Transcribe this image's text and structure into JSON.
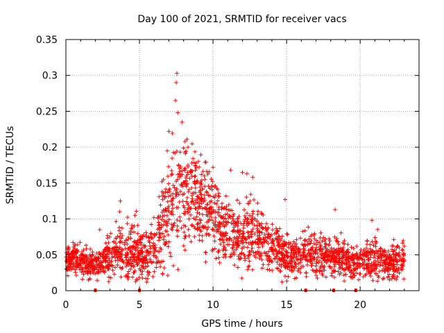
{
  "chart_data": {
    "type": "scatter",
    "title": "Day 100 of 2021, SRMTID for receiver vacs",
    "xlabel": "GPS time / hours",
    "ylabel": "SRMTID / TECUs",
    "xlim": [
      0,
      24
    ],
    "ylim": [
      0,
      0.35
    ],
    "x_ticks": [
      0,
      5,
      10,
      15,
      20
    ],
    "x_tick_labels": [
      "0",
      "5",
      "10",
      "15",
      "20"
    ],
    "y_ticks": [
      0,
      0.05,
      0.1,
      0.15,
      0.2,
      0.25,
      0.3,
      0.35
    ],
    "y_tick_labels": [
      "0",
      "0.05",
      "0.1",
      "0.15",
      "0.2",
      "0.25",
      "0.3",
      "0.35"
    ],
    "grid": true,
    "marker": "+",
    "series_color": "#ff0000",
    "marker_color": "#ff0000",
    "grid_color": "#a0a0a0",
    "profile": {
      "x": [
        0,
        0.5,
        1,
        1.5,
        2,
        2.5,
        3,
        3.5,
        4,
        4.5,
        5,
        5.5,
        6,
        6.5,
        7,
        7.5,
        8,
        8.5,
        9,
        9.5,
        10,
        10.5,
        11,
        11.5,
        12,
        12.5,
        13,
        13.5,
        14,
        14.5,
        15,
        15.5,
        16,
        16.5,
        17,
        17.5,
        18,
        18.5,
        19,
        19.5,
        20,
        20.5,
        21,
        21.5,
        22,
        22.5,
        23
      ],
      "y": [
        0.04,
        0.045,
        0.042,
        0.038,
        0.035,
        0.04,
        0.048,
        0.055,
        0.06,
        0.058,
        0.052,
        0.048,
        0.06,
        0.08,
        0.12,
        0.145,
        0.14,
        0.135,
        0.13,
        0.12,
        0.105,
        0.09,
        0.085,
        0.082,
        0.08,
        0.078,
        0.075,
        0.07,
        0.06,
        0.055,
        0.05,
        0.045,
        0.05,
        0.055,
        0.05,
        0.048,
        0.045,
        0.048,
        0.042,
        0.04,
        0.04,
        0.042,
        0.045,
        0.04,
        0.038,
        0.04,
        0.042
      ],
      "spread": [
        0.01,
        0.012,
        0.01,
        0.01,
        0.01,
        0.012,
        0.015,
        0.018,
        0.02,
        0.02,
        0.02,
        0.018,
        0.02,
        0.03,
        0.04,
        0.05,
        0.04,
        0.035,
        0.035,
        0.03,
        0.028,
        0.025,
        0.022,
        0.022,
        0.022,
        0.02,
        0.02,
        0.018,
        0.015,
        0.015,
        0.015,
        0.013,
        0.015,
        0.015,
        0.014,
        0.013,
        0.013,
        0.014,
        0.013,
        0.012,
        0.012,
        0.013,
        0.014,
        0.013,
        0.012,
        0.012,
        0.012
      ]
    },
    "notable_points": [
      {
        "x": 7.55,
        "y": 0.303
      },
      {
        "x": 7.5,
        "y": 0.29
      },
      {
        "x": 7.45,
        "y": 0.265
      },
      {
        "x": 7.6,
        "y": 0.248
      },
      {
        "x": 7.9,
        "y": 0.235
      },
      {
        "x": 7.0,
        "y": 0.222
      },
      {
        "x": 8.1,
        "y": 0.208
      },
      {
        "x": 8.3,
        "y": 0.2
      },
      {
        "x": 9.0,
        "y": 0.18
      },
      {
        "x": 10.0,
        "y": 0.172
      },
      {
        "x": 11.2,
        "y": 0.168
      },
      {
        "x": 12.0,
        "y": 0.165
      },
      {
        "x": 12.3,
        "y": 0.163
      },
      {
        "x": 12.7,
        "y": 0.158
      },
      {
        "x": 14.9,
        "y": 0.127
      },
      {
        "x": 3.7,
        "y": 0.125
      },
      {
        "x": 18.3,
        "y": 0.113
      },
      {
        "x": 20.8,
        "y": 0.098
      },
      {
        "x": 2.3,
        "y": 0.085
      },
      {
        "x": 3.05,
        "y": 0.018
      },
      {
        "x": 5.5,
        "y": 0.012
      },
      {
        "x": 9.5,
        "y": 0.04
      },
      {
        "x": 10.2,
        "y": 0.045
      },
      {
        "x": 22.0,
        "y": 0.015
      }
    ],
    "data_gap_markers": [
      2.0,
      5.0,
      16.3,
      18.2,
      19.7
    ],
    "n_points": 2300
  }
}
